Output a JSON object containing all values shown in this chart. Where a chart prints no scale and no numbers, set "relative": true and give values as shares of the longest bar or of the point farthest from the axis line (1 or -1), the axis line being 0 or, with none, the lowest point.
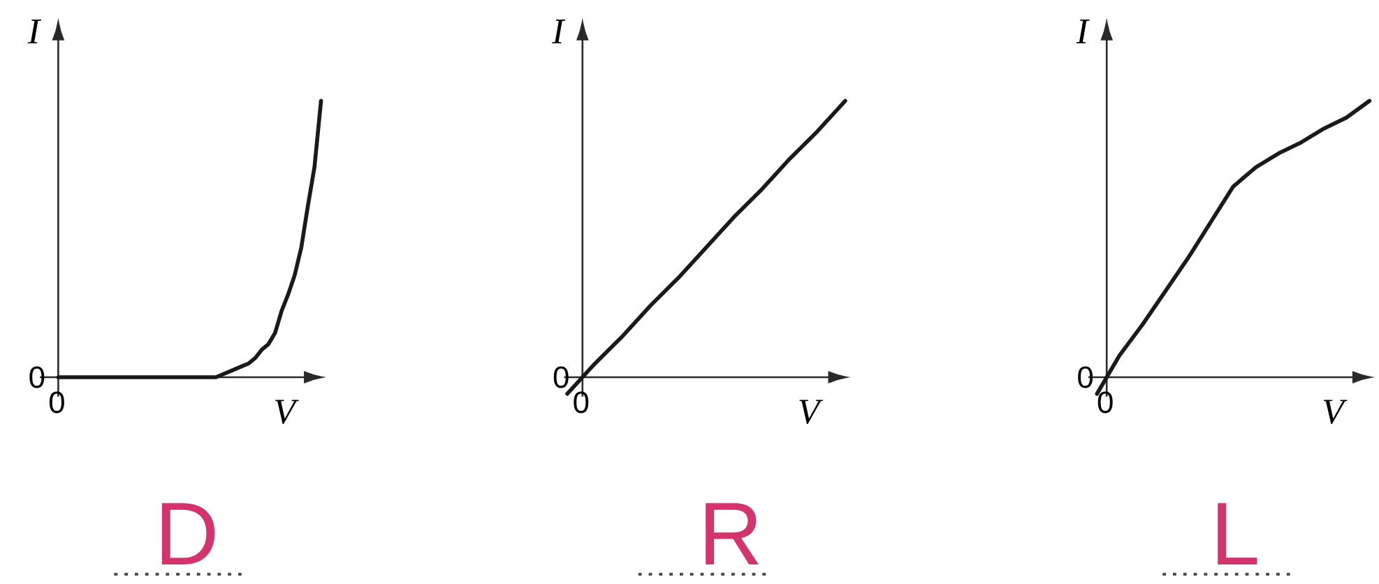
{
  "chart_data": [
    {
      "type": "line",
      "relative": true,
      "xlabel": "V",
      "ylabel": "I",
      "color": "#1a1a1a",
      "categories": [
        null,
        null,
        null,
        null,
        null,
        null,
        null,
        null,
        null,
        null,
        null,
        null,
        null,
        null,
        null,
        null,
        null,
        null,
        null,
        null,
        null,
        null,
        null,
        null,
        null,
        null,
        null,
        null,
        null,
        null,
        null,
        null,
        null,
        null,
        null,
        null,
        null,
        null,
        null,
        null,
        null
      ],
      "values": [
        0,
        0,
        0,
        0,
        0,
        0,
        0,
        0,
        0,
        0,
        0,
        0,
        0,
        0,
        0,
        0,
        0,
        0,
        0,
        0,
        0,
        0,
        0,
        0,
        0,
        0.01,
        0.02,
        0.03,
        0.04,
        0.05,
        0.07,
        0.1,
        0.12,
        0.16,
        0.24,
        0.3,
        0.37,
        0.47,
        0.62,
        0.76,
        1
      ],
      "annotations": [
        "0",
        "0",
        "D"
      ]
    },
    {
      "type": "line",
      "relative": true,
      "xlabel": "V",
      "ylabel": "I",
      "color": "#1a1a1a",
      "categories": [
        null,
        null,
        null,
        null,
        null,
        null,
        null,
        null,
        null,
        null,
        null
      ],
      "values": [
        -0.06,
        0.05,
        0.15,
        0.26,
        0.36,
        0.47,
        0.58,
        0.68,
        0.79,
        0.89,
        1
      ],
      "annotations": [
        "0",
        "0",
        "R"
      ]
    },
    {
      "type": "line",
      "relative": true,
      "xlabel": "V",
      "ylabel": "I",
      "color": "#1a1a1a",
      "categories": [
        null,
        null,
        null,
        null,
        null,
        null,
        null,
        null,
        null,
        null,
        null,
        null,
        null
      ],
      "values": [
        -0.06,
        0.08,
        0.19,
        0.31,
        0.43,
        0.56,
        0.69,
        0.76,
        0.81,
        0.85,
        0.9,
        0.94,
        1
      ],
      "annotations": [
        "0",
        "0",
        "L"
      ]
    }
  ]
}
